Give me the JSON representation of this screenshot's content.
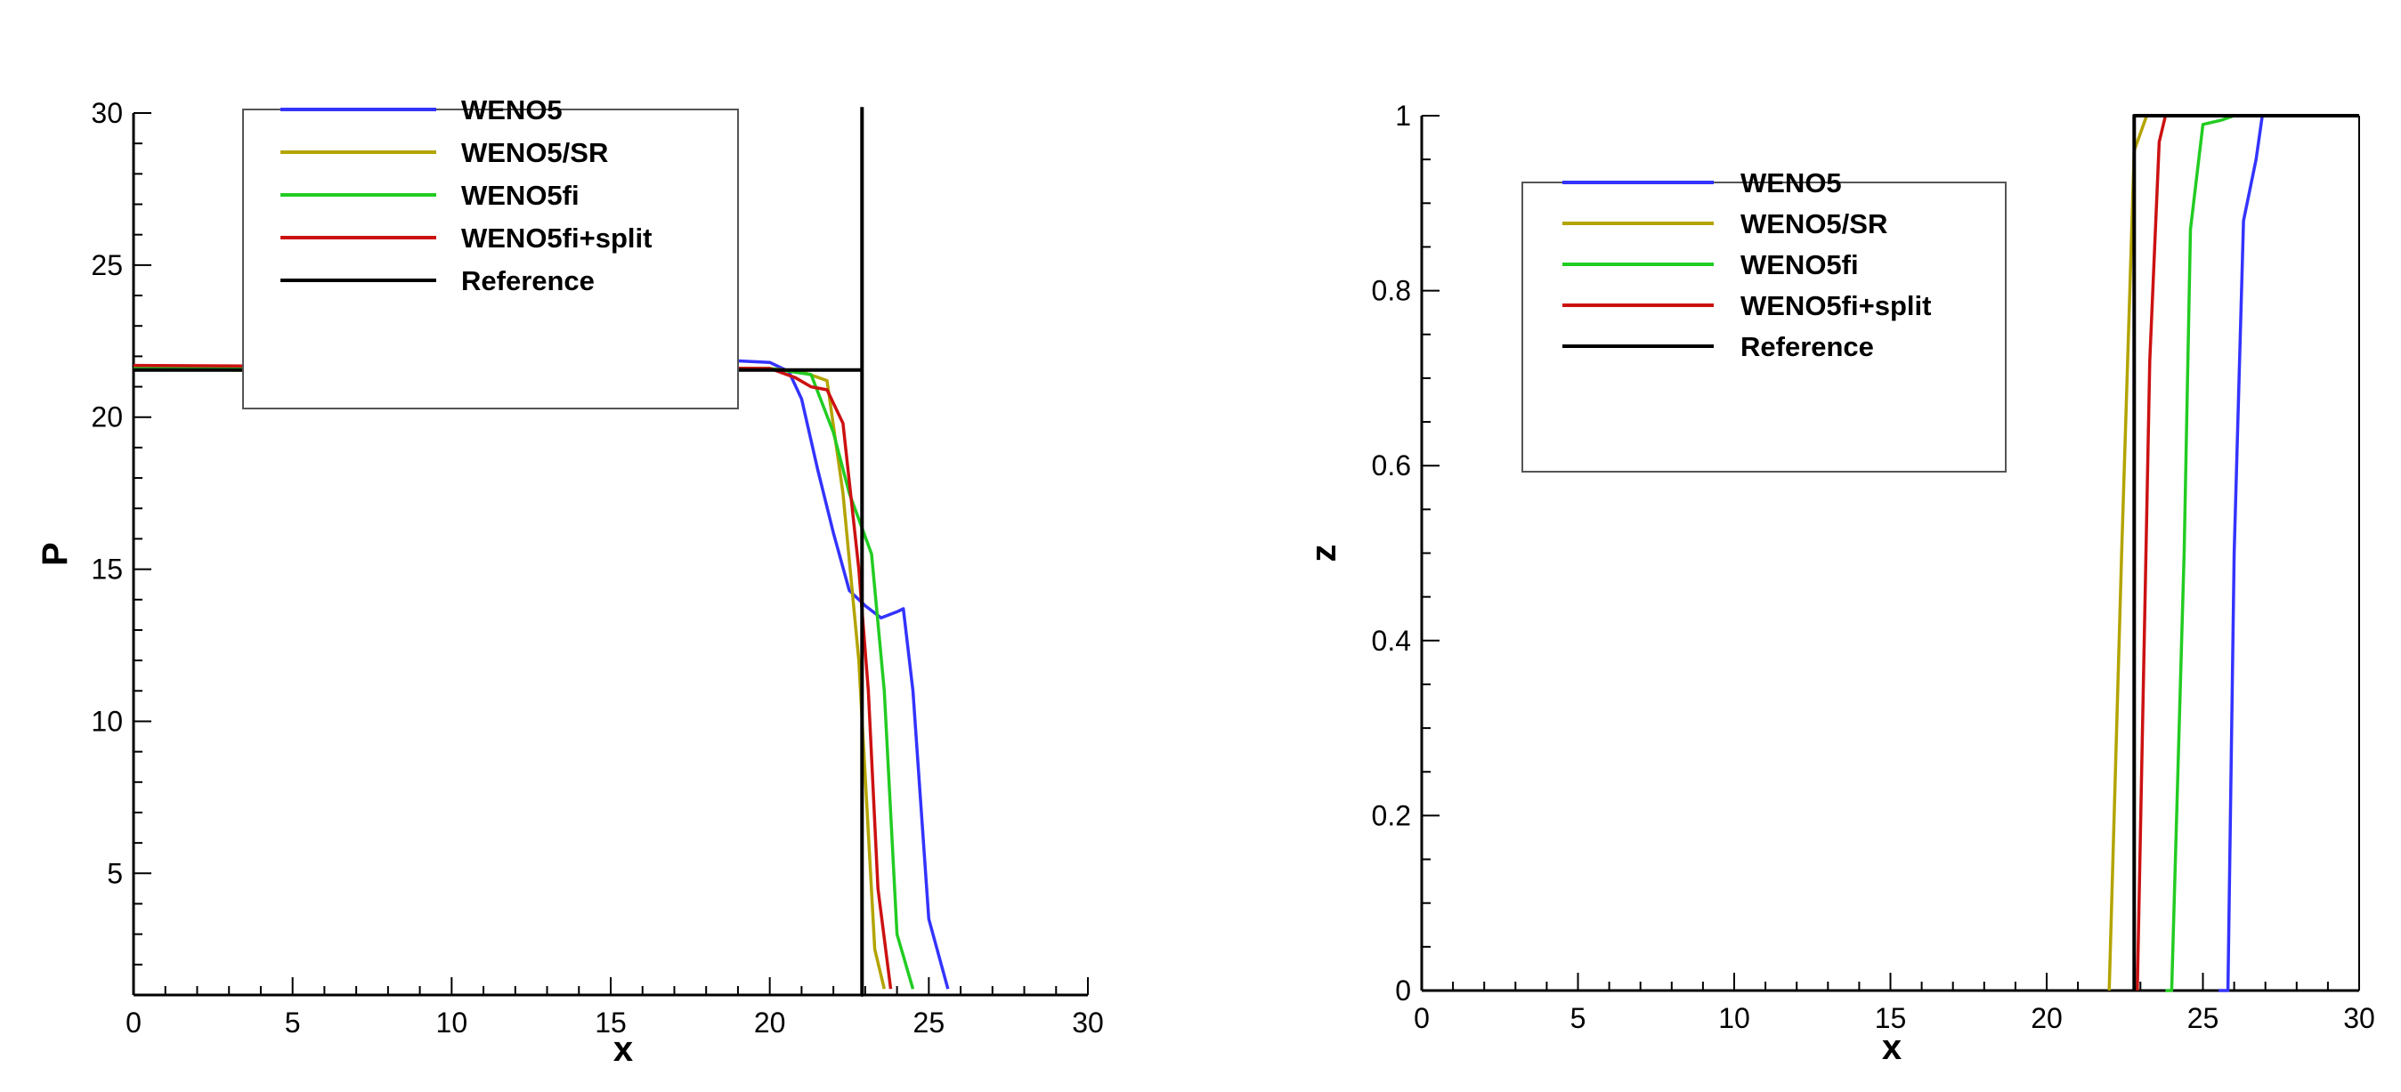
{
  "chart_data": [
    {
      "type": "line",
      "title": "",
      "xlabel": "x",
      "ylabel": "P",
      "xlim": [
        0,
        30
      ],
      "ylim": [
        1,
        30
      ],
      "x_ticks": [
        0,
        5,
        10,
        15,
        20,
        25,
        30
      ],
      "y_ticks": [
        5,
        10,
        15,
        20,
        25,
        30
      ],
      "grid": false,
      "legend_position": "top-left",
      "series": [
        {
          "name": "WENO5",
          "color": "#3333ff",
          "points": [
            [
              0,
              21.6
            ],
            [
              6,
              21.6
            ],
            [
              10,
              21.6
            ],
            [
              14,
              21.65
            ],
            [
              17,
              21.75
            ],
            [
              19,
              21.85
            ],
            [
              20,
              21.8
            ],
            [
              20.6,
              21.5
            ],
            [
              21,
              20.6
            ],
            [
              21.5,
              18.3
            ],
            [
              22,
              16.2
            ],
            [
              22.5,
              14.3
            ],
            [
              23,
              13.8
            ],
            [
              23.5,
              13.4
            ],
            [
              24,
              13.6
            ],
            [
              24.2,
              13.7
            ],
            [
              24.5,
              11.0
            ],
            [
              25,
              3.5
            ],
            [
              25.6,
              1.2
            ]
          ]
        },
        {
          "name": "WENO5/SR",
          "color": "#b3a400",
          "points": [
            [
              0,
              21.6
            ],
            [
              6,
              21.5
            ],
            [
              7.5,
              21.1
            ],
            [
              8.5,
              21.0
            ],
            [
              9.5,
              21.4
            ],
            [
              11,
              21.6
            ],
            [
              20,
              21.6
            ],
            [
              21,
              21.5
            ],
            [
              21.8,
              21.2
            ],
            [
              22.3,
              17.5
            ],
            [
              22.8,
              12.0
            ],
            [
              23.3,
              2.5
            ],
            [
              23.6,
              1.2
            ]
          ]
        },
        {
          "name": "WENO5fi",
          "color": "#22cc22",
          "points": [
            [
              0,
              21.6
            ],
            [
              7,
              21.6
            ],
            [
              8.5,
              21.75
            ],
            [
              9.5,
              21.6
            ],
            [
              20,
              21.6
            ],
            [
              21.3,
              21.4
            ],
            [
              22,
              19.5
            ],
            [
              22.5,
              17.5
            ],
            [
              23.2,
              15.5
            ],
            [
              23.6,
              11.0
            ],
            [
              24,
              3.0
            ],
            [
              24.5,
              1.2
            ]
          ]
        },
        {
          "name": "WENO5fi+split",
          "color": "#cc1111",
          "points": [
            [
              0,
              21.7
            ],
            [
              20,
              21.6
            ],
            [
              20.8,
              21.3
            ],
            [
              21.3,
              21.0
            ],
            [
              21.8,
              20.9
            ],
            [
              22.3,
              19.8
            ],
            [
              22.8,
              15.0
            ],
            [
              23.1,
              11.0
            ],
            [
              23.4,
              4.5
            ],
            [
              23.8,
              1.2
            ]
          ]
        },
        {
          "name": "Reference",
          "color": "#000000",
          "points": [
            [
              0,
              21.55
            ],
            [
              22.9,
              21.55
            ],
            [
              22.9,
              1
            ],
            [
              22.9,
              30.2
            ]
          ]
        }
      ]
    },
    {
      "type": "line",
      "title": "",
      "xlabel": "x",
      "ylabel": "z",
      "xlim": [
        0,
        30
      ],
      "ylim": [
        0,
        1
      ],
      "x_ticks": [
        0,
        5,
        10,
        15,
        20,
        25,
        30
      ],
      "y_ticks": [
        0,
        0.2,
        0.4,
        0.6,
        0.8,
        1
      ],
      "y_tick_labels": [
        "0",
        "0.2",
        "0.4",
        "0.6",
        "0.8",
        "1"
      ],
      "grid": false,
      "legend_position": "top-left",
      "series": [
        {
          "name": "WENO5",
          "color": "#3333ff",
          "points": [
            [
              25.5,
              0
            ],
            [
              25.8,
              0
            ],
            [
              26.0,
              0.5
            ],
            [
              26.3,
              0.88
            ],
            [
              26.7,
              0.95
            ],
            [
              26.9,
              1.0
            ],
            [
              30,
              1.0
            ]
          ]
        },
        {
          "name": "WENO5/SR",
          "color": "#b3a400",
          "points": [
            [
              22.0,
              0
            ],
            [
              22.4,
              0.5
            ],
            [
              22.8,
              0.96
            ],
            [
              23.2,
              1.0
            ],
            [
              30,
              1.0
            ]
          ]
        },
        {
          "name": "WENO5fi",
          "color": "#22cc22",
          "points": [
            [
              23.8,
              0
            ],
            [
              24.0,
              0
            ],
            [
              24.4,
              0.5
            ],
            [
              24.6,
              0.87
            ],
            [
              25.0,
              0.99
            ],
            [
              25.6,
              0.995
            ],
            [
              26.0,
              1.0
            ],
            [
              30,
              1.0
            ]
          ]
        },
        {
          "name": "WENO5fi+split",
          "color": "#cc1111",
          "points": [
            [
              22.9,
              0
            ],
            [
              23.3,
              0.72
            ],
            [
              23.6,
              0.97
            ],
            [
              23.8,
              1.0
            ],
            [
              30,
              1.0
            ]
          ]
        },
        {
          "name": "Reference",
          "color": "#000000",
          "points": [
            [
              22.8,
              0
            ],
            [
              22.8,
              1.0
            ],
            [
              30,
              1.0
            ]
          ]
        }
      ]
    }
  ]
}
